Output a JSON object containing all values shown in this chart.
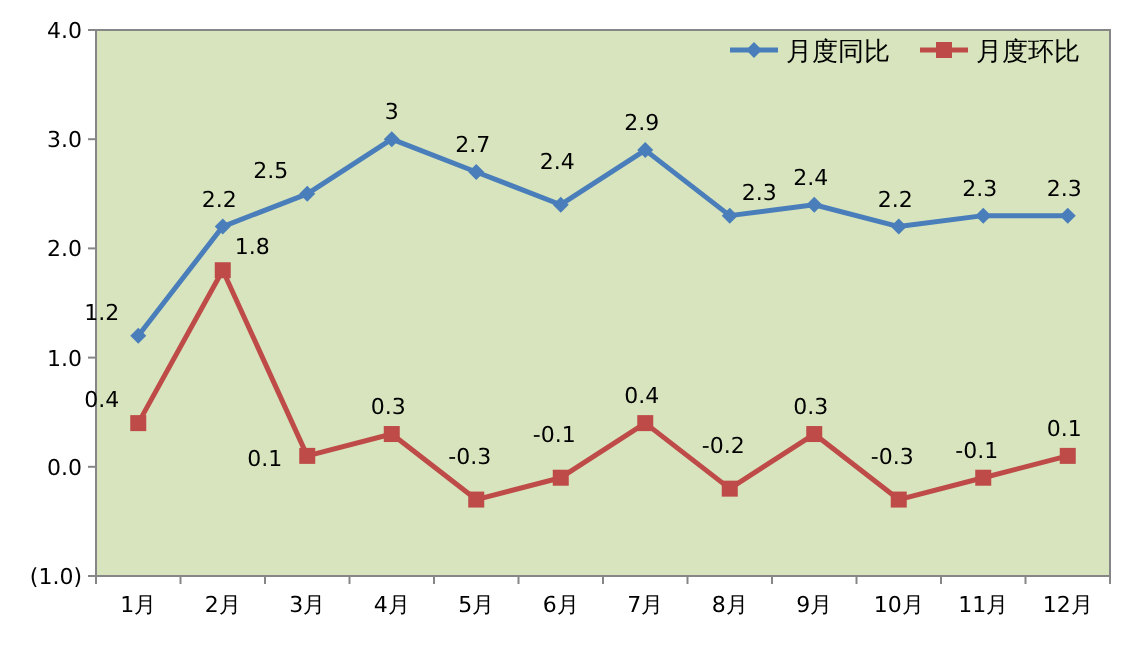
{
  "chart_data": {
    "type": "line",
    "categories": [
      "1月",
      "2月",
      "3月",
      "4月",
      "5月",
      "6月",
      "7月",
      "8月",
      "9月",
      "10月",
      "11月",
      "12月"
    ],
    "series": [
      {
        "name": "月度同比",
        "color": "#4a7ebb",
        "marker": "diamond",
        "values": [
          1.2,
          2.2,
          2.5,
          3,
          2.7,
          2.4,
          2.9,
          2.3,
          2.4,
          2.2,
          2.3,
          2.3
        ]
      },
      {
        "name": "月度环比",
        "color": "#be4b48",
        "marker": "square",
        "values": [
          0.4,
          1.8,
          0.1,
          0.3,
          -0.3,
          -0.1,
          0.4,
          -0.2,
          0.3,
          -0.3,
          -0.1,
          0.1
        ]
      }
    ],
    "ylim": [
      -1,
      4
    ],
    "yticks": [
      {
        "value": -1,
        "label": "(1.0)"
      },
      {
        "value": 0,
        "label": "0.0"
      },
      {
        "value": 1,
        "label": "1.0"
      },
      {
        "value": 2,
        "label": "2.0"
      },
      {
        "value": 3,
        "label": "3.0"
      },
      {
        "value": 4,
        "label": "4.0"
      }
    ],
    "data_labels": true,
    "legend": "top right",
    "grid": false,
    "line_style": "solid"
  }
}
